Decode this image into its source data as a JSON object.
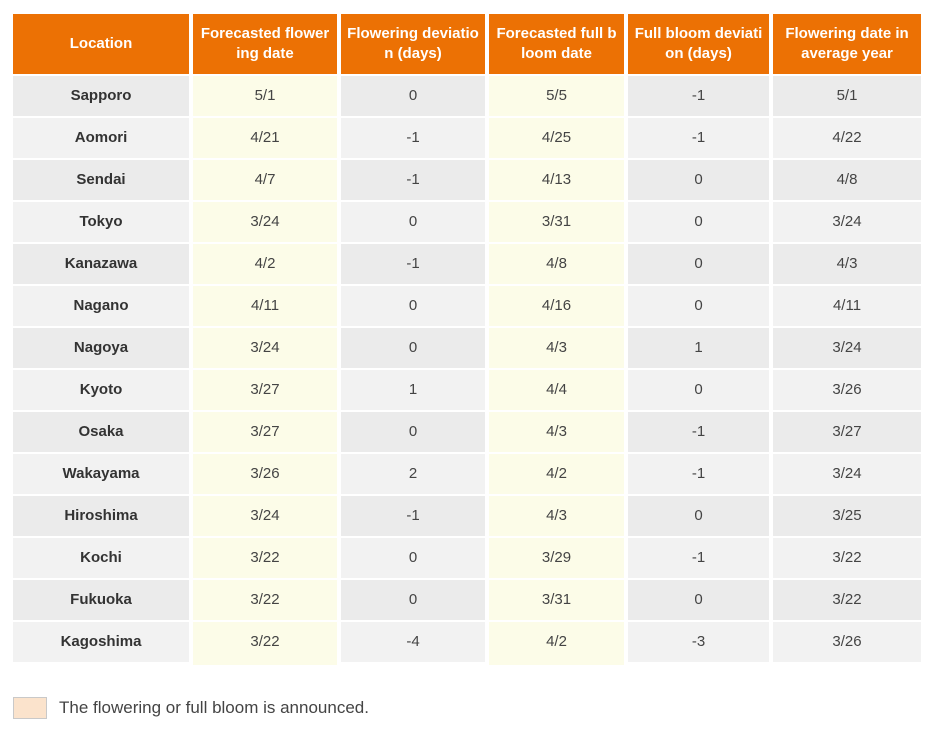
{
  "chart_data": {
    "type": "table",
    "columns": [
      "Location",
      "Forecasted flowering date",
      "Flowering deviation (days)",
      "Forecasted full bloom date",
      "Full bloom deviation (days)",
      "Flowering date in average year"
    ],
    "highlighted_columns": [
      "Forecasted flowering date",
      "Forecasted full bloom date"
    ],
    "rows": [
      [
        "Sapporo",
        "5/1",
        "0",
        "5/5",
        "-1",
        "5/1"
      ],
      [
        "Aomori",
        "4/21",
        "-1",
        "4/25",
        "-1",
        "4/22"
      ],
      [
        "Sendai",
        "4/7",
        "-1",
        "4/13",
        "0",
        "4/8"
      ],
      [
        "Tokyo",
        "3/24",
        "0",
        "3/31",
        "0",
        "3/24"
      ],
      [
        "Kanazawa",
        "4/2",
        "-1",
        "4/8",
        "0",
        "4/3"
      ],
      [
        "Nagano",
        "4/11",
        "0",
        "4/16",
        "0",
        "4/11"
      ],
      [
        "Nagoya",
        "3/24",
        "0",
        "4/3",
        "1",
        "3/24"
      ],
      [
        "Kyoto",
        "3/27",
        "1",
        "4/4",
        "0",
        "3/26"
      ],
      [
        "Osaka",
        "3/27",
        "0",
        "4/3",
        "-1",
        "3/27"
      ],
      [
        "Wakayama",
        "3/26",
        "2",
        "4/2",
        "-1",
        "3/24"
      ],
      [
        "Hiroshima",
        "3/24",
        "-1",
        "4/3",
        "0",
        "3/25"
      ],
      [
        "Kochi",
        "3/22",
        "0",
        "3/29",
        "-1",
        "3/22"
      ],
      [
        "Fukuoka",
        "3/22",
        "0",
        "3/31",
        "0",
        "3/22"
      ],
      [
        "Kagoshima",
        "3/22",
        "-4",
        "4/2",
        "-3",
        "3/26"
      ]
    ],
    "legend": {
      "text": "The flowering or full bloom is announced.",
      "swatch_color": "#FBE3CC"
    }
  },
  "colors": {
    "header_bg": "#EC7104",
    "header_text": "#FFFFFF",
    "row_odd_bg": "#EBEBEB",
    "row_even_bg": "#F2F2F2",
    "highlight_col_bg": "#FCFCE8",
    "cell_text": "#444444",
    "location_text": "#333333"
  }
}
